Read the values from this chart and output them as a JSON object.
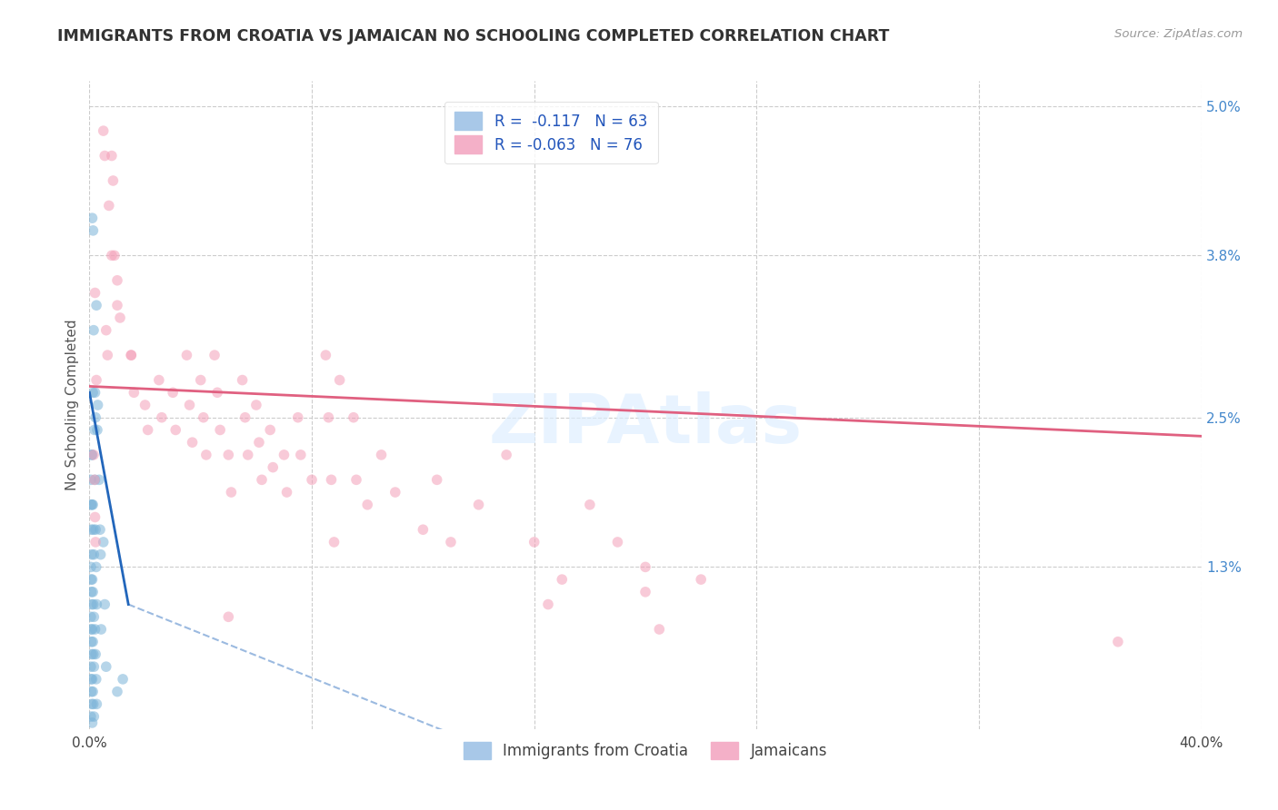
{
  "title": "IMMIGRANTS FROM CROATIA VS JAMAICAN NO SCHOOLING COMPLETED CORRELATION CHART",
  "source": "Source: ZipAtlas.com",
  "ylabel": "No Schooling Completed",
  "xlim": [
    0.0,
    40.0
  ],
  "ylim": [
    0.0,
    5.2
  ],
  "xticks": [
    0.0,
    8.0,
    16.0,
    24.0,
    32.0,
    40.0
  ],
  "xtick_labels": [
    "0.0%",
    "",
    "",
    "",
    "",
    "40.0%"
  ],
  "yticks_right": [
    1.3,
    2.5,
    3.8,
    5.0
  ],
  "ytick_right_labels": [
    "1.3%",
    "2.5%",
    "3.8%",
    "5.0%"
  ],
  "grid_color": "#cccccc",
  "background_color": "#ffffff",
  "watermark": "ZIPAtlas",
  "croatia_color": "#7ab3d8",
  "jamaica_color": "#f4a0b8",
  "croatia_trend_color": "#2266bb",
  "jamaica_trend_color": "#e06080",
  "dot_size": 70,
  "dot_alpha": 0.55,
  "croatia_dots": [
    [
      0.15,
      3.2
    ],
    [
      0.25,
      3.4
    ],
    [
      0.12,
      2.7
    ],
    [
      0.18,
      2.4
    ],
    [
      0.1,
      4.1
    ],
    [
      0.13,
      4.0
    ],
    [
      0.2,
      2.7
    ],
    [
      0.22,
      2.5
    ],
    [
      0.08,
      2.2
    ],
    [
      0.09,
      1.8
    ],
    [
      0.3,
      2.6
    ],
    [
      0.28,
      2.4
    ],
    [
      0.05,
      2.0
    ],
    [
      0.06,
      1.8
    ],
    [
      0.07,
      1.6
    ],
    [
      0.08,
      1.4
    ],
    [
      0.05,
      1.3
    ],
    [
      0.06,
      1.2
    ],
    [
      0.07,
      1.1
    ],
    [
      0.08,
      1.0
    ],
    [
      0.05,
      0.9
    ],
    [
      0.06,
      0.8
    ],
    [
      0.07,
      0.7
    ],
    [
      0.08,
      0.6
    ],
    [
      0.05,
      0.5
    ],
    [
      0.06,
      0.4
    ],
    [
      0.07,
      0.3
    ],
    [
      0.08,
      0.2
    ],
    [
      0.1,
      2.2
    ],
    [
      0.12,
      1.8
    ],
    [
      0.14,
      1.6
    ],
    [
      0.16,
      1.4
    ],
    [
      0.1,
      1.2
    ],
    [
      0.12,
      1.1
    ],
    [
      0.14,
      1.0
    ],
    [
      0.16,
      0.9
    ],
    [
      0.1,
      0.8
    ],
    [
      0.12,
      0.7
    ],
    [
      0.14,
      0.6
    ],
    [
      0.16,
      0.5
    ],
    [
      0.1,
      0.4
    ],
    [
      0.12,
      0.3
    ],
    [
      0.14,
      0.2
    ],
    [
      0.16,
      0.1
    ],
    [
      0.2,
      2.0
    ],
    [
      0.22,
      1.6
    ],
    [
      0.24,
      1.3
    ],
    [
      0.26,
      1.0
    ],
    [
      0.2,
      0.8
    ],
    [
      0.22,
      0.6
    ],
    [
      0.24,
      0.4
    ],
    [
      0.26,
      0.2
    ],
    [
      0.35,
      2.0
    ],
    [
      0.38,
      1.6
    ],
    [
      0.4,
      1.4
    ],
    [
      0.42,
      0.8
    ],
    [
      0.5,
      1.5
    ],
    [
      0.55,
      1.0
    ],
    [
      0.6,
      0.5
    ],
    [
      1.0,
      0.3
    ],
    [
      1.2,
      0.4
    ],
    [
      0.05,
      0.1
    ],
    [
      0.1,
      0.05
    ]
  ],
  "jamaica_dots": [
    [
      0.2,
      3.5
    ],
    [
      0.25,
      2.8
    ],
    [
      0.5,
      4.8
    ],
    [
      0.55,
      4.6
    ],
    [
      0.7,
      4.2
    ],
    [
      0.8,
      3.8
    ],
    [
      1.0,
      3.6
    ],
    [
      1.1,
      3.3
    ],
    [
      1.5,
      3.0
    ],
    [
      1.6,
      2.7
    ],
    [
      2.0,
      2.6
    ],
    [
      2.1,
      2.4
    ],
    [
      0.6,
      3.2
    ],
    [
      0.65,
      3.0
    ],
    [
      2.5,
      2.8
    ],
    [
      2.6,
      2.5
    ],
    [
      3.0,
      2.7
    ],
    [
      3.1,
      2.4
    ],
    [
      3.5,
      3.0
    ],
    [
      3.6,
      2.6
    ],
    [
      3.7,
      2.3
    ],
    [
      4.0,
      2.8
    ],
    [
      4.1,
      2.5
    ],
    [
      4.2,
      2.2
    ],
    [
      4.5,
      3.0
    ],
    [
      4.6,
      2.7
    ],
    [
      4.7,
      2.4
    ],
    [
      5.0,
      2.2
    ],
    [
      5.1,
      1.9
    ],
    [
      5.5,
      2.8
    ],
    [
      5.6,
      2.5
    ],
    [
      5.7,
      2.2
    ],
    [
      6.0,
      2.6
    ],
    [
      6.1,
      2.3
    ],
    [
      6.2,
      2.0
    ],
    [
      6.5,
      2.4
    ],
    [
      6.6,
      2.1
    ],
    [
      7.0,
      2.2
    ],
    [
      7.1,
      1.9
    ],
    [
      7.5,
      2.5
    ],
    [
      7.6,
      2.2
    ],
    [
      8.0,
      2.0
    ],
    [
      8.5,
      3.0
    ],
    [
      8.6,
      2.5
    ],
    [
      8.7,
      2.0
    ],
    [
      8.8,
      1.5
    ],
    [
      9.0,
      2.8
    ],
    [
      9.5,
      2.5
    ],
    [
      9.6,
      2.0
    ],
    [
      10.0,
      1.8
    ],
    [
      10.5,
      2.2
    ],
    [
      11.0,
      1.9
    ],
    [
      12.0,
      1.6
    ],
    [
      12.5,
      2.0
    ],
    [
      13.0,
      1.5
    ],
    [
      14.0,
      1.8
    ],
    [
      15.0,
      2.2
    ],
    [
      16.0,
      1.5
    ],
    [
      17.0,
      1.2
    ],
    [
      18.0,
      1.8
    ],
    [
      19.0,
      1.5
    ],
    [
      20.0,
      1.3
    ],
    [
      22.0,
      1.2
    ],
    [
      0.8,
      4.6
    ],
    [
      0.85,
      4.4
    ],
    [
      0.9,
      3.8
    ],
    [
      1.0,
      3.4
    ],
    [
      1.5,
      3.0
    ],
    [
      0.15,
      2.2
    ],
    [
      0.18,
      2.0
    ],
    [
      0.2,
      1.7
    ],
    [
      0.22,
      1.5
    ],
    [
      37.0,
      0.7
    ],
    [
      20.5,
      0.8
    ],
    [
      16.5,
      1.0
    ],
    [
      20.0,
      1.1
    ],
    [
      5.0,
      0.9
    ]
  ],
  "croatia_trend_solid": [
    0.0,
    2.7,
    1.4,
    1.0
  ],
  "croatia_trend_dashed": [
    1.4,
    1.0,
    35.0,
    -2.0
  ],
  "jamaica_trend": [
    0.0,
    2.75,
    40.0,
    2.35
  ]
}
